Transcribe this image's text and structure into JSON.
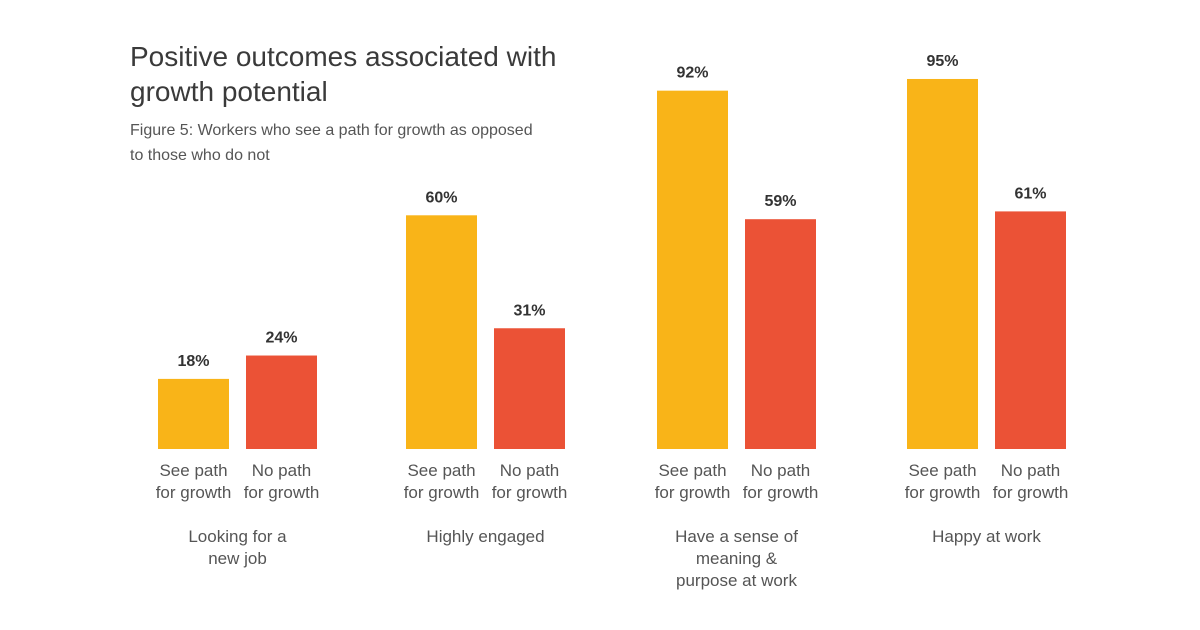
{
  "chart_data": {
    "type": "bar",
    "title": [
      "Positive outcomes associated with",
      "growth potential"
    ],
    "subtitle": [
      "Figure 5: Workers who see a path for growth as opposed",
      "to those who do not"
    ],
    "categories": [
      [
        "Looking for a",
        "new job"
      ],
      [
        "Highly engaged"
      ],
      [
        "Have a sense of",
        "meaning &",
        "purpose at work"
      ],
      [
        "Happy at work"
      ]
    ],
    "bar_labels": [
      [
        "See path",
        "for growth"
      ],
      [
        "No path",
        "for growth"
      ]
    ],
    "series": [
      {
        "name": "See path for growth",
        "color": "#F9B418",
        "values": [
          18,
          60,
          92,
          95
        ]
      },
      {
        "name": "No path for growth",
        "color": "#EB5236",
        "values": [
          24,
          31,
          59,
          61
        ]
      }
    ],
    "value_suffix": "%",
    "ylim": [
      0,
      100
    ],
    "grid": false,
    "legend": "none"
  }
}
